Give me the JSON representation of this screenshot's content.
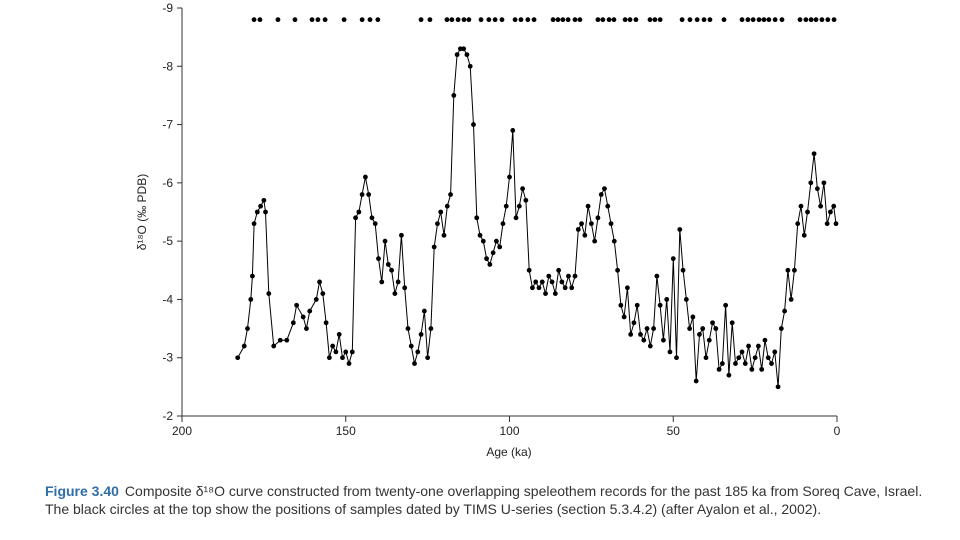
{
  "chart_data": {
    "type": "line",
    "y_label": "δ¹⁸O (‰ PDB)",
    "x_label": "Age (ka)",
    "xlim": [
      200,
      0
    ],
    "xticks": [
      200,
      150,
      100,
      50,
      0
    ],
    "ylim": [
      -2,
      -9
    ],
    "yticks": [
      -9,
      -8,
      -7,
      -6,
      -5,
      -4,
      -3,
      -2
    ],
    "series": [
      {
        "color": "#000000",
        "markers": true,
        "line": true,
        "x": [
          183,
          181,
          180,
          179,
          178.5,
          178,
          177,
          176,
          175,
          174.5,
          173.5,
          172,
          170,
          168,
          166,
          165,
          163,
          162,
          161,
          159,
          158,
          157,
          156,
          155,
          154,
          153,
          152,
          151,
          150,
          149,
          148,
          147,
          146,
          145,
          144,
          143,
          142,
          141,
          140,
          139,
          138,
          137,
          136,
          135,
          134,
          133,
          132,
          131,
          130,
          129,
          128,
          127,
          126,
          125,
          124,
          123,
          122,
          121,
          120,
          119,
          118,
          117,
          116,
          115,
          114,
          113,
          112,
          111,
          110,
          109,
          108,
          107,
          106,
          105,
          104,
          103,
          102,
          101,
          100,
          99,
          98,
          97,
          96,
          95,
          94,
          93,
          92,
          91,
          90,
          89,
          88,
          87,
          86,
          85,
          84,
          83,
          82,
          81,
          80,
          79,
          78,
          77,
          76,
          75,
          74,
          73,
          72,
          71,
          70,
          69,
          68,
          67,
          66,
          65,
          64,
          63,
          62,
          61,
          60,
          59,
          58,
          57,
          56,
          55,
          54,
          53,
          52,
          51,
          50,
          49,
          48,
          47,
          46,
          45,
          44,
          43,
          42,
          41,
          40,
          39,
          38,
          37,
          36,
          35,
          34,
          33,
          32,
          31,
          30,
          29,
          28,
          27,
          26,
          25,
          24,
          23,
          22,
          21,
          20,
          19,
          18,
          17,
          16,
          15,
          14,
          13,
          12,
          11,
          10,
          9,
          8,
          7,
          6,
          5,
          4,
          3,
          2,
          1,
          0.3
        ],
        "values": [
          -3.0,
          -3.2,
          -3.5,
          -4.0,
          -4.4,
          -5.3,
          -5.5,
          -5.6,
          -5.7,
          -5.5,
          -4.1,
          -3.2,
          -3.3,
          -3.3,
          -3.6,
          -3.9,
          -3.7,
          -3.5,
          -3.8,
          -4.0,
          -4.3,
          -4.1,
          -3.6,
          -3.0,
          -3.2,
          -3.1,
          -3.4,
          -3.0,
          -3.1,
          -2.9,
          -3.1,
          -5.4,
          -5.5,
          -5.8,
          -6.1,
          -5.8,
          -5.4,
          -5.3,
          -4.7,
          -4.3,
          -5.0,
          -4.6,
          -4.5,
          -4.1,
          -4.3,
          -5.1,
          -4.2,
          -3.5,
          -3.2,
          -2.9,
          -3.1,
          -3.4,
          -3.8,
          -3.0,
          -3.5,
          -4.9,
          -5.3,
          -5.5,
          -5.1,
          -5.6,
          -5.8,
          -7.5,
          -8.2,
          -8.3,
          -8.3,
          -8.2,
          -8.0,
          -7.0,
          -5.4,
          -5.1,
          -5.0,
          -4.7,
          -4.6,
          -4.8,
          -5.0,
          -4.9,
          -5.3,
          -5.6,
          -6.1,
          -6.9,
          -5.4,
          -5.6,
          -5.9,
          -5.7,
          -4.5,
          -4.2,
          -4.3,
          -4.2,
          -4.3,
          -4.1,
          -4.4,
          -4.3,
          -4.1,
          -4.5,
          -4.3,
          -4.2,
          -4.4,
          -4.2,
          -4.4,
          -5.2,
          -5.3,
          -5.1,
          -5.6,
          -5.3,
          -5.0,
          -5.4,
          -5.8,
          -5.9,
          -5.6,
          -5.3,
          -5.0,
          -4.5,
          -3.9,
          -3.7,
          -4.2,
          -3.4,
          -3.6,
          -3.9,
          -3.4,
          -3.3,
          -3.5,
          -3.2,
          -3.5,
          -4.4,
          -3.9,
          -3.3,
          -4.0,
          -3.1,
          -4.7,
          -3.0,
          -5.2,
          -4.5,
          -4.0,
          -3.5,
          -3.7,
          -2.6,
          -3.4,
          -3.5,
          -3.0,
          -3.3,
          -3.6,
          -3.5,
          -2.8,
          -2.9,
          -3.9,
          -2.7,
          -3.6,
          -2.9,
          -3.0,
          -3.1,
          -2.9,
          -3.2,
          -2.8,
          -3.0,
          -3.2,
          -2.8,
          -3.3,
          -3.0,
          -2.9,
          -3.1,
          -2.5,
          -3.5,
          -3.8,
          -4.5,
          -4.0,
          -4.5,
          -5.3,
          -5.6,
          -5.1,
          -5.5,
          -6.0,
          -6.5,
          -5.9,
          -5.6,
          -6.0,
          -5.3,
          -5.5,
          -5.6,
          -5.3
        ]
      },
      {
        "color": "#000000",
        "markers": true,
        "line": false,
        "x": [
          178.0,
          176.2,
          170.7,
          165.5,
          160.3,
          158.5,
          156.3,
          150.5,
          145.0,
          142.6,
          140.2,
          127.0,
          124.3,
          119.1,
          117.6,
          115.7,
          113.9,
          112.4,
          108.7,
          106.3,
          104.4,
          102.3,
          98.3,
          96.5,
          94.4,
          92.5,
          86.7,
          85.2,
          83.7,
          82.1,
          80.0,
          78.5,
          73.0,
          71.5,
          69.6,
          68.1,
          64.7,
          63.2,
          61.4,
          57.1,
          55.6,
          54.0,
          47.3,
          44.9,
          42.7,
          40.6,
          38.8,
          34.5,
          29.0,
          27.2,
          25.6,
          23.8,
          22.3,
          20.8,
          18.9,
          16.8,
          11.3,
          9.5,
          7.9,
          6.4,
          4.6,
          2.8,
          0.9
        ],
        "values": [
          -8.8,
          -8.8,
          -8.8,
          -8.8,
          -8.8,
          -8.8,
          -8.8,
          -8.8,
          -8.8,
          -8.8,
          -8.8,
          -8.8,
          -8.8,
          -8.8,
          -8.8,
          -8.8,
          -8.8,
          -8.8,
          -8.8,
          -8.8,
          -8.8,
          -8.8,
          -8.8,
          -8.8,
          -8.8,
          -8.8,
          -8.8,
          -8.8,
          -8.8,
          -8.8,
          -8.8,
          -8.8,
          -8.8,
          -8.8,
          -8.8,
          -8.8,
          -8.8,
          -8.8,
          -8.8,
          -8.8,
          -8.8,
          -8.8,
          -8.8,
          -8.8,
          -8.8,
          -8.8,
          -8.8,
          -8.8,
          -8.8,
          -8.8,
          -8.8,
          -8.8,
          -8.8,
          -8.8,
          -8.8,
          -8.8,
          -8.8,
          -8.8,
          -8.8,
          -8.8,
          -8.8,
          -8.8,
          -8.8
        ]
      }
    ]
  },
  "caption": {
    "label": "Figure 3.40",
    "text": "Composite δ¹⁸O curve constructed from twenty-one overlapping speleothem records for the past 185 ka from Soreq Cave, Israel. The black circles at the top show the positions of samples dated by TIMS U-series (section 5.3.4.2) (after Ayalon et al., 2002)."
  }
}
